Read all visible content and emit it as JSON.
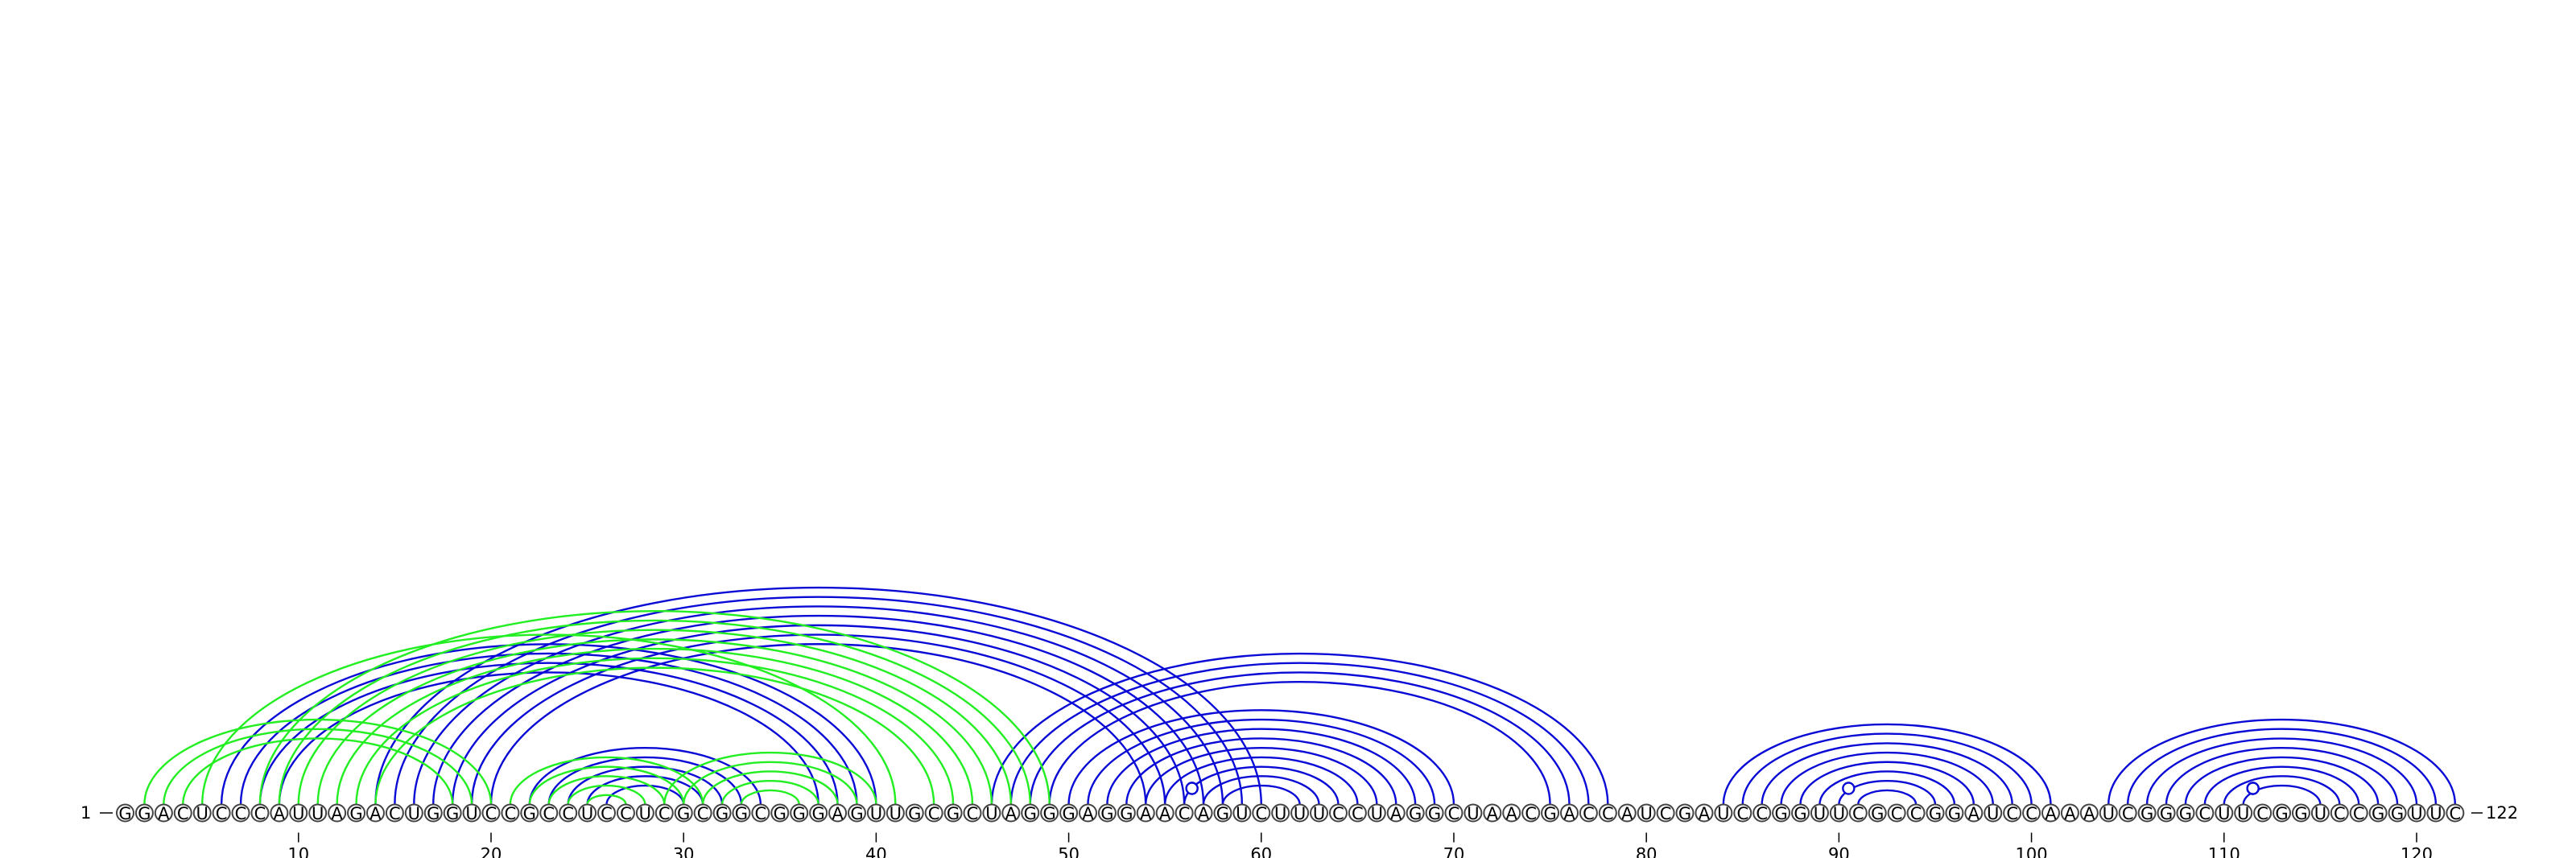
{
  "sequence": "GGACUCCCAUUAGACUGGUCCGCCUCCUCGCGGCGGGAGUUGCGCUAGGGAGGAACAGUCUUUCCUAGGCUAACGACCAUCGAUCCGGUUCGCCGGAUCCAAAUCGGGCUUCGGUCCGGUUC",
  "start_label": "1",
  "end_label": "122",
  "ticks": [
    "10",
    "20",
    "30",
    "40",
    "50",
    "60",
    "70",
    "80",
    "90",
    "100",
    "110",
    "120"
  ],
  "colors": {
    "blue": "#0a0ad6",
    "green": "#22ee22"
  },
  "arc_groups": [
    {
      "color": "blue",
      "pairs": [
        [
          6,
          40
        ],
        [
          7,
          39
        ],
        [
          8,
          38
        ],
        [
          9,
          37
        ],
        [
          14,
          60
        ],
        [
          15,
          59
        ],
        [
          16,
          58
        ],
        [
          17,
          57
        ],
        [
          18,
          56
        ],
        [
          19,
          55
        ],
        [
          20,
          54
        ],
        [
          22,
          34
        ],
        [
          23,
          33
        ],
        [
          24,
          32
        ],
        [
          25,
          31
        ],
        [
          26,
          30
        ],
        [
          46,
          78
        ],
        [
          47,
          77
        ],
        [
          48,
          76
        ],
        [
          49,
          75
        ],
        [
          50,
          70
        ],
        [
          51,
          69
        ],
        [
          52,
          68
        ],
        [
          53,
          67
        ],
        [
          54,
          66
        ],
        [
          55,
          65
        ],
        [
          56,
          64
        ],
        [
          57,
          63
        ],
        [
          58,
          62
        ],
        [
          84,
          101
        ],
        [
          85,
          100
        ],
        [
          86,
          99
        ],
        [
          87,
          98
        ],
        [
          88,
          97
        ],
        [
          89,
          96
        ],
        [
          90,
          95
        ],
        [
          91,
          94
        ],
        [
          104,
          122
        ],
        [
          105,
          121
        ],
        [
          106,
          120
        ],
        [
          107,
          119
        ],
        [
          108,
          118
        ],
        [
          109,
          117
        ],
        [
          110,
          116
        ],
        [
          111,
          115
        ]
      ]
    },
    {
      "color": "green",
      "pairs": [
        [
          2,
          20
        ],
        [
          3,
          19
        ],
        [
          4,
          18
        ],
        [
          5,
          41
        ],
        [
          8,
          49
        ],
        [
          9,
          48
        ],
        [
          10,
          47
        ],
        [
          11,
          46
        ],
        [
          12,
          45
        ],
        [
          13,
          44
        ],
        [
          14,
          43
        ],
        [
          21,
          31
        ],
        [
          22,
          30
        ],
        [
          23,
          29
        ],
        [
          24,
          28
        ],
        [
          25,
          27
        ],
        [
          29,
          40
        ],
        [
          30,
          39
        ],
        [
          31,
          38
        ],
        [
          32,
          37
        ],
        [
          33,
          36
        ]
      ]
    }
  ],
  "dot_markers": [
    {
      "position": 56.4,
      "level": 0.75,
      "color": "blue"
    },
    {
      "position": 56.4,
      "level": 0.55,
      "color": "blue"
    },
    {
      "position": 90.5,
      "level": 0.05,
      "color": "blue"
    },
    {
      "position": 111.5,
      "level": 0.95,
      "color": "blue"
    },
    {
      "position": 111.5,
      "level": 0.55,
      "color": "blue"
    },
    {
      "position": 111.5,
      "level": 0.35,
      "color": "blue"
    }
  ]
}
